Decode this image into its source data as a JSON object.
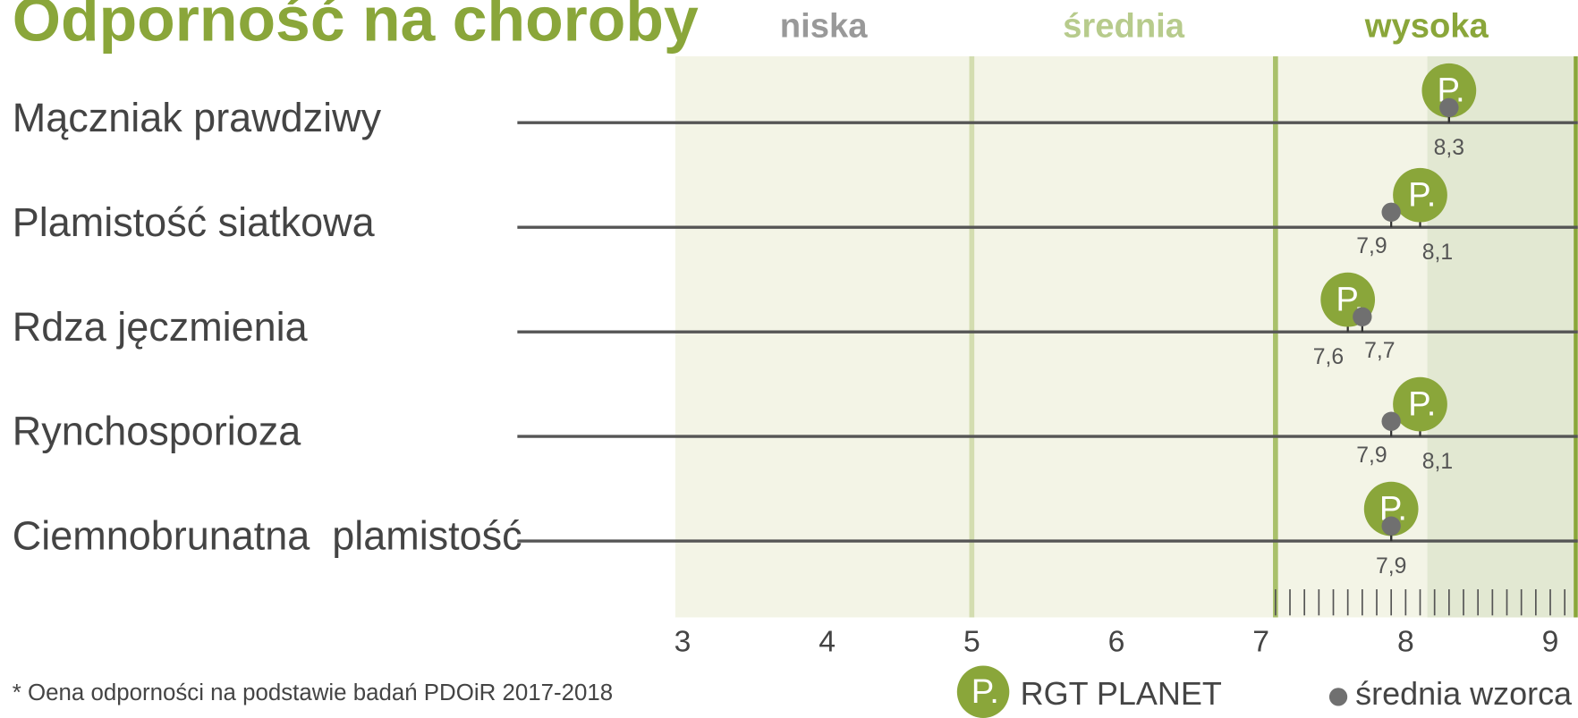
{
  "chart_data": {
    "type": "dot",
    "title": "Odporność na choroby",
    "footnote": "* Oena odporności na podstawie badań PDOiR 2017-2018",
    "marker_label": "P.",
    "categories": [
      "Mączniak prawdziwy",
      "Plamistość siatkowa",
      "Rdza jęczmienia",
      "Rynchosporioza",
      "Ciemnobrunatna  plamistość"
    ],
    "bands": [
      {
        "label": "niska",
        "from": 2.95,
        "to": 5,
        "color": "#999999"
      },
      {
        "label": "średnia",
        "from": 5,
        "to": 7.1,
        "color": "#b7cb8c"
      },
      {
        "label": "wysoka",
        "from": 7.1,
        "to": 9.19,
        "color": "#8aa63a"
      }
    ],
    "highlight": [
      8.15,
      9.19
    ],
    "series": [
      {
        "name": "RGT PLANET",
        "color": "#8aa63a",
        "values": [
          8.3,
          8.1,
          7.6,
          8.1,
          7.9
        ],
        "value_labels": [
          "8,3",
          "8,1",
          "7,6",
          "8,1",
          "7,9"
        ]
      },
      {
        "name": "średnia wzorca",
        "color": "#707070",
        "values": [
          8.3,
          7.9,
          7.7,
          7.9,
          7.9
        ],
        "value_labels": [
          null,
          "7,9",
          "7,7",
          "7,9",
          null
        ]
      }
    ],
    "xlim": [
      2.95,
      9.19
    ],
    "xticks": [
      3,
      4,
      5,
      6,
      7,
      8,
      9
    ]
  }
}
